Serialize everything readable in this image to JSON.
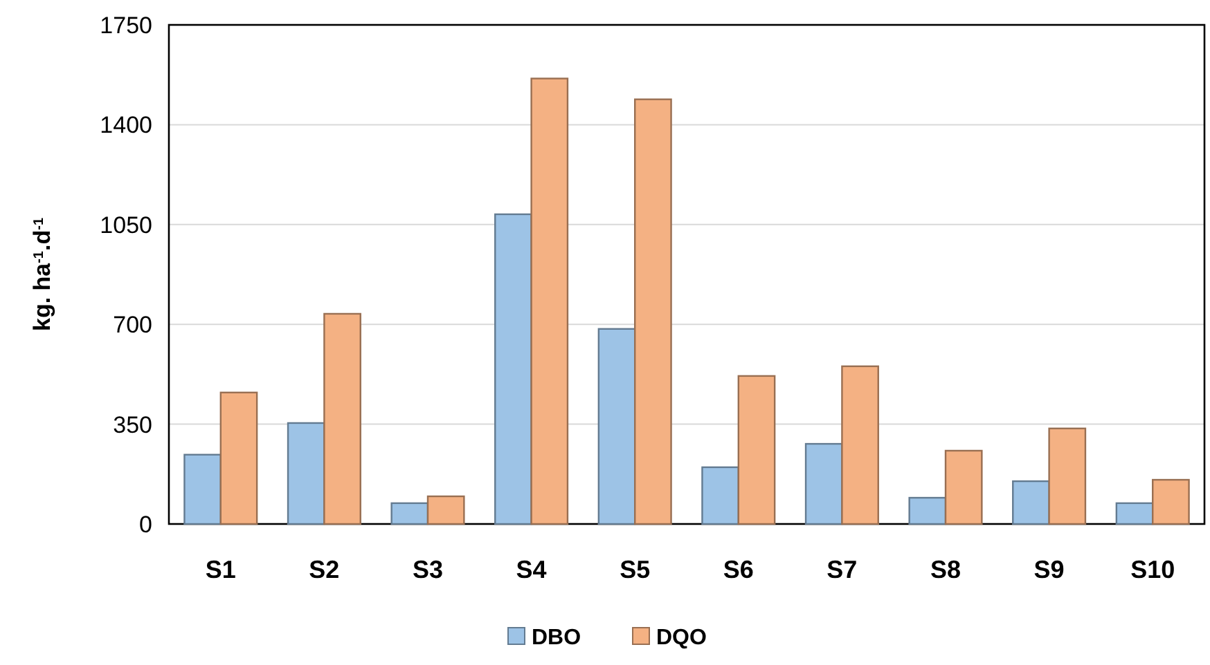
{
  "chart_data": {
    "type": "bar",
    "ylabel": "kg. ha$^{-1}$.d$^{-1}$",
    "categories": [
      "S1",
      "S2",
      "S3",
      "S4",
      "S5",
      "S6",
      "S7",
      "S8",
      "S9",
      "S10"
    ],
    "series": [
      {
        "name": "DBO",
        "color": "#9dc3e6",
        "values": [
          243,
          354,
          73,
          1086,
          684,
          199,
          281,
          92,
          150,
          73
        ]
      },
      {
        "name": "DQO",
        "color": "#f4b183",
        "values": [
          461,
          737,
          97,
          1562,
          1489,
          519,
          553,
          257,
          335,
          155
        ]
      }
    ],
    "ylim": [
      0,
      1750
    ],
    "yticks": [
      0,
      350,
      700,
      1050,
      1400,
      1750
    ],
    "grid": "y",
    "legend": "bottom"
  }
}
